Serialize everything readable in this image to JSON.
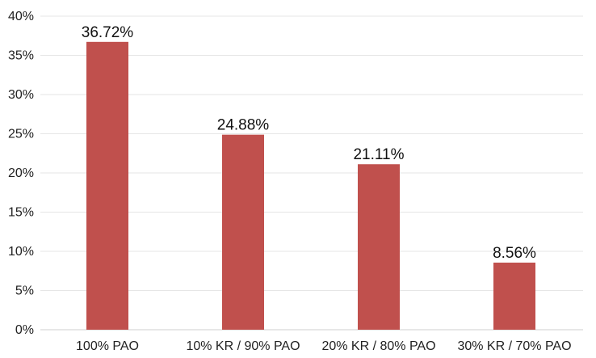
{
  "chart_data": {
    "type": "bar",
    "title": "",
    "xlabel": "",
    "ylabel": "",
    "categories": [
      "100% PAO",
      "10% KR / 90% PAO",
      "20% KR / 80% PAO",
      "30% KR / 70% PAO"
    ],
    "values": [
      36.72,
      24.88,
      21.11,
      8.56
    ],
    "data_labels": [
      "36.72%",
      "24.88%",
      "21.11%",
      "8.56%"
    ],
    "ylim": [
      0,
      40
    ],
    "y_ticks": [
      0,
      5,
      10,
      15,
      20,
      25,
      30,
      35,
      40
    ],
    "y_tick_labels": [
      "0%",
      "5%",
      "10%",
      "15%",
      "20%",
      "25%",
      "30%",
      "35%",
      "40%"
    ],
    "grid": true,
    "legend": "none",
    "bar_color": "#c0504d"
  }
}
